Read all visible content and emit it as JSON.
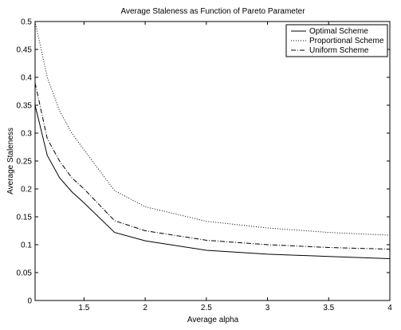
{
  "chart_data": {
    "type": "line",
    "title": "Average Staleness as Function of Pareto Parameter",
    "xlabel": "Average alpha",
    "ylabel": "Average Staleness",
    "xlim": [
      1.1,
      4
    ],
    "ylim": [
      0,
      0.5
    ],
    "xticks": [
      1.5,
      2,
      2.5,
      3,
      3.5,
      4
    ],
    "xtick_labels": [
      "1.5",
      "2",
      "2.5",
      "3",
      "3.5",
      "4"
    ],
    "yticks": [
      0,
      0.05,
      0.1,
      0.15,
      0.2,
      0.25,
      0.3,
      0.35,
      0.4,
      0.45,
      0.5
    ],
    "ytick_labels": [
      "0",
      "0.05",
      "0.1",
      "0.15",
      "0.2",
      "0.25",
      "0.3",
      "0.35",
      "0.4",
      "0.45",
      "0.5"
    ],
    "grid": false,
    "legend_position": "top-right",
    "x": [
      1.1,
      1.2,
      1.3,
      1.4,
      1.5,
      1.75,
      2,
      2.5,
      3,
      3.5,
      4
    ],
    "series": [
      {
        "name": "Optimal Scheme",
        "style": "solid",
        "color": "#000000",
        "values": [
          0.35,
          0.26,
          0.22,
          0.195,
          0.175,
          0.122,
          0.107,
          0.09,
          0.083,
          0.079,
          0.075
        ]
      },
      {
        "name": "Proportional Scheme",
        "style": "dotted",
        "color": "#000000",
        "values": [
          0.5,
          0.4,
          0.34,
          0.3,
          0.27,
          0.197,
          0.168,
          0.142,
          0.13,
          0.122,
          0.117
        ]
      },
      {
        "name": "Uniform Scheme",
        "style": "dashdot",
        "color": "#000000",
        "values": [
          0.39,
          0.29,
          0.25,
          0.22,
          0.2,
          0.143,
          0.125,
          0.108,
          0.1,
          0.095,
          0.092
        ]
      }
    ]
  }
}
